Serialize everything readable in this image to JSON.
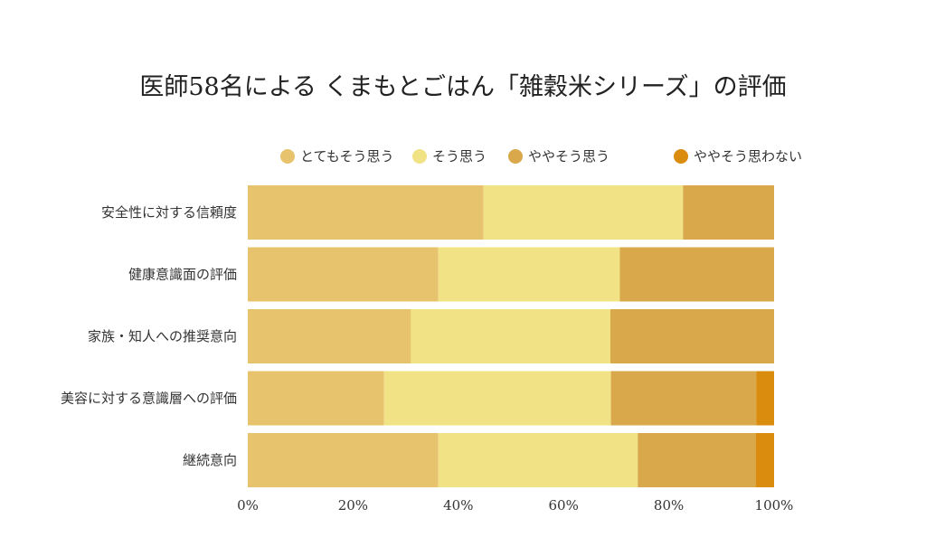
{
  "chart_data": {
    "type": "bar",
    "orientation": "horizontal",
    "stacked": true,
    "title": "医師58名による くまもとごはん「雑穀米シリーズ」の評価",
    "xlabel": "",
    "ylabel": "",
    "xlim": [
      0,
      100
    ],
    "x_ticks": [
      "0%",
      "20%",
      "40%",
      "60%",
      "80%",
      "100%"
    ],
    "x_tick_values": [
      0,
      20,
      40,
      60,
      80,
      100
    ],
    "grid": false,
    "legend_position": "top",
    "categories": [
      "安全性に対する信頼度",
      "健康意識面の評価",
      "家族・知人への推奨意向",
      "美容に対する意識層への評価",
      "継続意向"
    ],
    "series": [
      {
        "name": "とてもそう思う",
        "color": "#E8C36E",
        "values": [
          44.8,
          36.2,
          31.0,
          25.9,
          36.2
        ]
      },
      {
        "name": "そう思う",
        "color": "#F1E385",
        "values": [
          37.9,
          34.5,
          37.9,
          43.1,
          37.9
        ]
      },
      {
        "name": "ややそう思う",
        "color": "#D8A84B",
        "values": [
          17.3,
          29.3,
          31.1,
          27.6,
          22.4
        ]
      },
      {
        "name": "ややそう思わない",
        "color": "#D98C0E",
        "values": [
          0,
          0,
          0,
          3.4,
          3.5
        ]
      }
    ]
  }
}
